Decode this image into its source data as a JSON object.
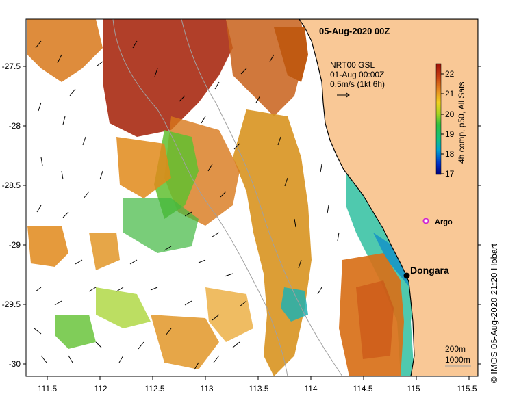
{
  "map": {
    "date_label": "05-Aug-2020 00Z",
    "info_lines": [
      "NRT00 GSL",
      "01-Aug 00:00Z",
      "0.5m/s (1kt 6h)"
    ],
    "colorbar": {
      "title": "4h comp, p50, All Sats",
      "ticks": [
        "22",
        "21",
        "20",
        "19",
        "18",
        "17"
      ],
      "range": [
        17,
        22.5
      ]
    },
    "lon_ticks": [
      "111.5",
      "112",
      "112.5",
      "113",
      "113.5",
      "114",
      "114.5",
      "115",
      "115.5"
    ],
    "lat_ticks": [
      "-27.5",
      "-28",
      "-28.5",
      "-29",
      "-29.5",
      "-30"
    ],
    "places": [
      {
        "name": "Argo",
        "lon": 115.08,
        "lat": -28.82
      },
      {
        "name": "Dongara",
        "lon": 114.93,
        "lat": -29.25
      }
    ],
    "isobaths": [
      "200m",
      "1000m"
    ],
    "credit": "© IMOS 06-Aug-2020 21:20 Hobart",
    "colors": {
      "land": "#f9c896",
      "marker_argo": "#d020d0",
      "coast": "#000000"
    }
  }
}
